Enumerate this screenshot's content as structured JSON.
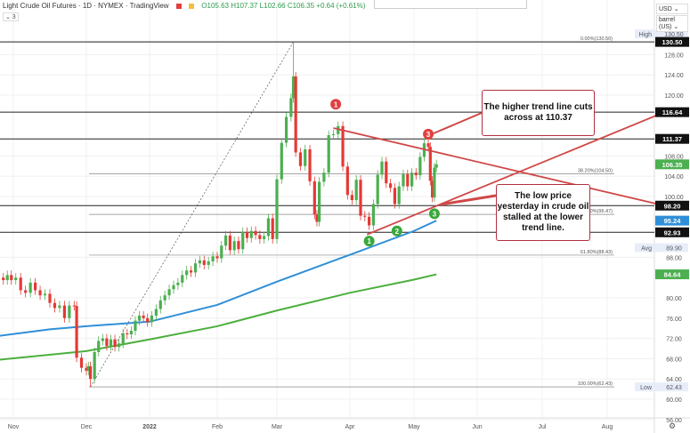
{
  "header": {
    "title": "Light Crude Oil Futures · 1D · NYMEX · TradingView",
    "ohlc": "O105.63 H107.37 L102.66 C106.35 +0.64 (+0.61%)",
    "collapse": "⌄ 3",
    "currency": "USD ⌄",
    "unit": "barrel (US) ⌄"
  },
  "chart_data": {
    "type": "candlestick",
    "title": "Light Crude Oil Futures 1D NYMEX",
    "x_ticks": [
      {
        "label": "Nov",
        "day": 0
      },
      {
        "label": "Dec",
        "day": 30
      },
      {
        "label": "2022",
        "day": 61
      },
      {
        "label": "Feb",
        "day": 92
      },
      {
        "label": "Mar",
        "day": 120
      },
      {
        "label": "Apr",
        "day": 151
      },
      {
        "label": "May",
        "day": 181
      },
      {
        "label": "Jun",
        "day": 212
      },
      {
        "label": "Jul",
        "day": 242
      },
      {
        "label": "Aug",
        "day": 273
      }
    ],
    "y_ticks": [
      128,
      124,
      120,
      108,
      104,
      100,
      88,
      80,
      76,
      72,
      68,
      64,
      60,
      56
    ],
    "ylim": [
      54,
      138
    ],
    "closes_by_day": [
      [
        -7,
        84
      ],
      [
        -5,
        83.5
      ],
      [
        -3,
        84.5
      ],
      [
        -1,
        83.5
      ],
      [
        1,
        84
      ],
      [
        3,
        81.5
      ],
      [
        5,
        81
      ],
      [
        7,
        83
      ],
      [
        9,
        81.5
      ],
      [
        11,
        80.5
      ],
      [
        13,
        80.8
      ],
      [
        15,
        79
      ],
      [
        17,
        78
      ],
      [
        19,
        78.5
      ],
      [
        21,
        76
      ],
      [
        23,
        78.5
      ],
      [
        25,
        78.4
      ],
      [
        26,
        68.2
      ],
      [
        28,
        66.2
      ],
      [
        30,
        65.6
      ],
      [
        31,
        66.5
      ],
      [
        32,
        64
      ],
      [
        34,
        69.3
      ],
      [
        36,
        71.5
      ],
      [
        38,
        72
      ],
      [
        40,
        70.5
      ],
      [
        42,
        71.8
      ],
      [
        44,
        70.3
      ],
      [
        46,
        71
      ],
      [
        48,
        73
      ],
      [
        50,
        72.8
      ],
      [
        52,
        73.5
      ],
      [
        54,
        75.5
      ],
      [
        56,
        76.5
      ],
      [
        58,
        76
      ],
      [
        60,
        75.2
      ],
      [
        62,
        76.5
      ],
      [
        64,
        77.8
      ],
      [
        66,
        79.5
      ],
      [
        68,
        80.5
      ],
      [
        70,
        81.7
      ],
      [
        72,
        82.5
      ],
      [
        74,
        83
      ],
      [
        76,
        84.5
      ],
      [
        78,
        85.4
      ],
      [
        80,
        85
      ],
      [
        82,
        86.8
      ],
      [
        84,
        87.4
      ],
      [
        86,
        86.5
      ],
      [
        88,
        87.2
      ],
      [
        90,
        88.2
      ],
      [
        92,
        87.8
      ],
      [
        94,
        90.3
      ],
      [
        96,
        92.3
      ],
      [
        98,
        89.4
      ],
      [
        100,
        91.2
      ],
      [
        102,
        89.6
      ],
      [
        104,
        93
      ],
      [
        106,
        91.8
      ],
      [
        108,
        93.2
      ],
      [
        110,
        92.4
      ],
      [
        112,
        91.6
      ],
      [
        114,
        92.2
      ],
      [
        116,
        95.7
      ],
      [
        118,
        91.6
      ],
      [
        120,
        103.4
      ],
      [
        122,
        110.6
      ],
      [
        124,
        115.7
      ],
      [
        126,
        119.4
      ],
      [
        127,
        123.7
      ],
      [
        128,
        108.7
      ],
      [
        130,
        106
      ],
      [
        132,
        109.3
      ],
      [
        134,
        103
      ],
      [
        136,
        96.4
      ],
      [
        137,
        95
      ],
      [
        138,
        102.9
      ],
      [
        140,
        104.7
      ],
      [
        142,
        112.1
      ],
      [
        144,
        112.3
      ],
      [
        146,
        113.9
      ],
      [
        148,
        105.9
      ],
      [
        150,
        100.3
      ],
      [
        152,
        99.3
      ],
      [
        154,
        103.3
      ],
      [
        156,
        96.2
      ],
      [
        158,
        96
      ],
      [
        160,
        94.3
      ],
      [
        162,
        98.5
      ],
      [
        164,
        104.3
      ],
      [
        166,
        106.9
      ],
      [
        168,
        102.6
      ],
      [
        170,
        101.7
      ],
      [
        172,
        98.5
      ],
      [
        174,
        102
      ],
      [
        176,
        104.4
      ],
      [
        178,
        102
      ],
      [
        180,
        104.7
      ],
      [
        182,
        104.2
      ],
      [
        184,
        107.8
      ],
      [
        186,
        110.5
      ],
      [
        188,
        109.8
      ],
      [
        189,
        103.1
      ],
      [
        190,
        99.8
      ],
      [
        191,
        105.7
      ],
      [
        192,
        106.35
      ]
    ],
    "series": [
      {
        "name": "Blue moving average",
        "color": "#2f8fd8",
        "values": [
          [
            -7,
            72.5
          ],
          [
            15,
            73.8
          ],
          [
            30,
            74.4
          ],
          [
            61,
            75.3
          ],
          [
            92,
            78.6
          ],
          [
            120,
            83.2
          ],
          [
            151,
            88.5
          ],
          [
            181,
            93.2
          ],
          [
            192,
            95.24
          ]
        ]
      },
      {
        "name": "Green moving average",
        "color": "#4caf3d",
        "values": [
          [
            -7,
            67.8
          ],
          [
            30,
            69.5
          ],
          [
            61,
            71.8
          ],
          [
            92,
            74.4
          ],
          [
            120,
            77.5
          ],
          [
            151,
            81
          ],
          [
            181,
            83.6
          ],
          [
            192,
            84.64
          ]
        ]
      }
    ],
    "horizontal_levels": [
      130.5,
      116.64,
      111.37,
      98.2,
      92.93
    ],
    "fibonacci": [
      {
        "label": "0.00%(130.50)",
        "value": 130.5
      },
      {
        "label": "38.20%(104.50)",
        "value": 104.5
      },
      {
        "label": "50.00%(96.47)",
        "value": 96.47
      },
      {
        "label": "61.80%(88.43)",
        "value": 88.43
      },
      {
        "label": "100.00%(62.43)",
        "value": 62.43
      }
    ],
    "trend_lines": [
      {
        "name": "upper",
        "from": [
          144,
          113.5
        ],
        "to": [
          300,
          98.2
        ]
      },
      {
        "name": "lower",
        "from": [
          159,
          92.5
        ],
        "to": [
          300,
          116.64
        ]
      }
    ],
    "markers": [
      {
        "label": "1",
        "color": "#e04040",
        "day": 145,
        "price": 118.2
      },
      {
        "label": "3",
        "color": "#e04040",
        "day": 188,
        "price": 112.3
      },
      {
        "label": "1",
        "color": "#3aa83a",
        "day": 160,
        "price": 91.2
      },
      {
        "label": "2",
        "color": "#3aa83a",
        "day": 173,
        "price": 93.2
      },
      {
        "label": "3",
        "color": "#3aa83a",
        "day": 191,
        "price": 96.6
      }
    ],
    "price_badges": [
      {
        "text": "130.50",
        "value": 130.5,
        "bg": "#111111"
      },
      {
        "text": "116.64",
        "value": 116.64,
        "bg": "#111111"
      },
      {
        "text": "111.37",
        "value": 111.37,
        "bg": "#111111"
      },
      {
        "text": "106.35",
        "value": 106.35,
        "bg": "#4caf50"
      },
      {
        "text": "98.20",
        "value": 98.2,
        "bg": "#111111"
      },
      {
        "text": "95.24",
        "value": 95.24,
        "bg": "#2f8fd8"
      },
      {
        "text": "92.93",
        "value": 92.93,
        "bg": "#111111"
      },
      {
        "text": "84.64",
        "value": 84.64,
        "bg": "#4caf50"
      }
    ],
    "stat_labels": [
      {
        "tag": "High",
        "text": "130.50",
        "value": 130.5,
        "ty": -9
      },
      {
        "tag": "Avg",
        "text": "89.90",
        "value": 89.9,
        "ty": 0
      },
      {
        "tag": "Low",
        "text": "62.43",
        "value": 62.43,
        "ty": 0
      }
    ]
  },
  "annotations": {
    "callout_1": "The higher trend line cuts across at 110.37",
    "callout_2": "The low price yesterday in crude oil stalled at the lower trend line."
  }
}
